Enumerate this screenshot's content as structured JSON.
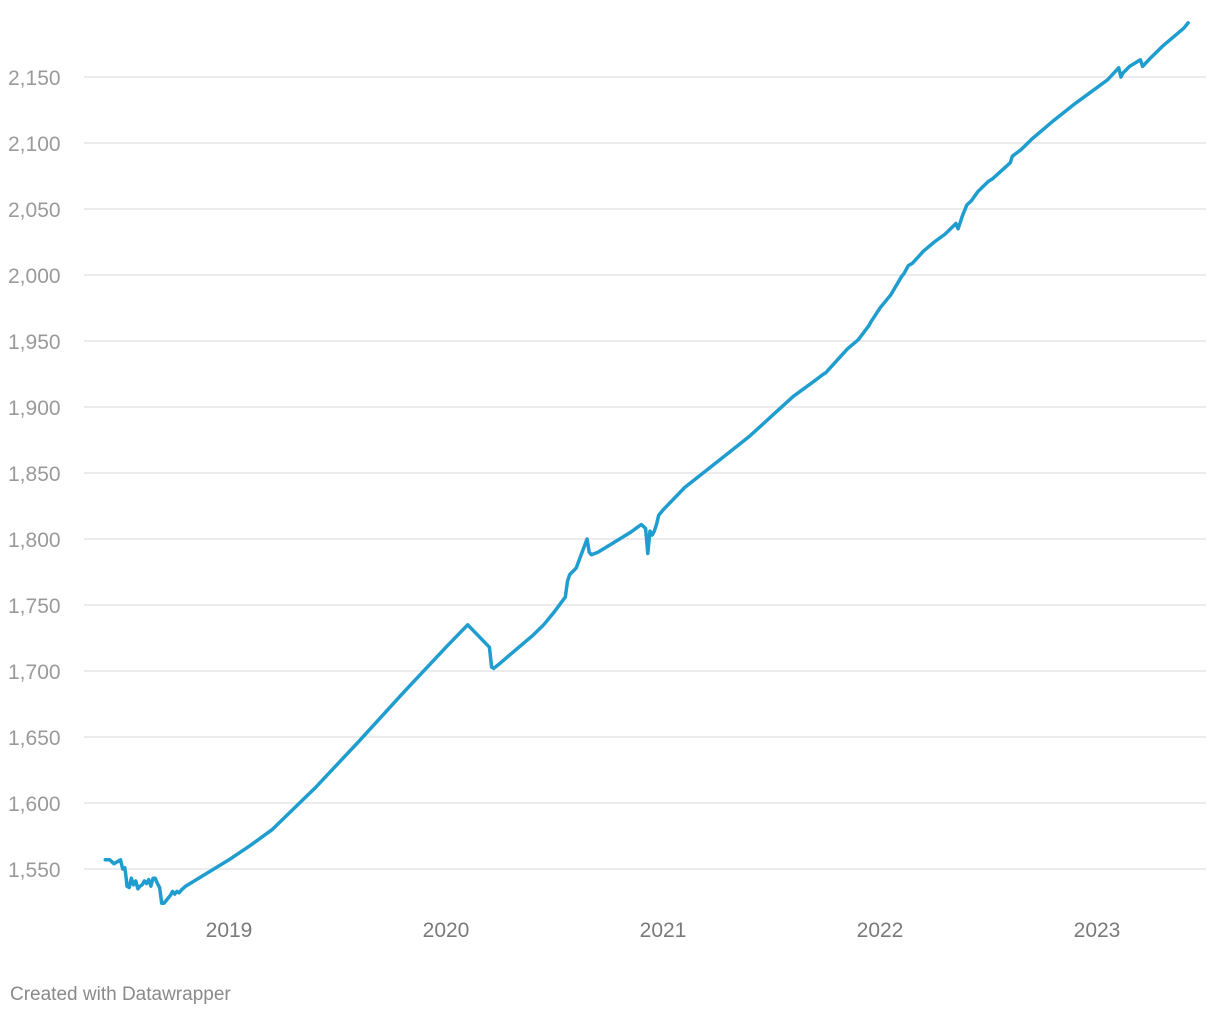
{
  "chart_data": {
    "type": "line",
    "title": "",
    "xlabel": "",
    "ylabel": "",
    "grid": true,
    "ylim": [
      1520,
      2190
    ],
    "yticks": [
      1550,
      1600,
      1650,
      1700,
      1750,
      1800,
      1850,
      1900,
      1950,
      2000,
      2050,
      2100,
      2150
    ],
    "ytick_labels": [
      "1,550",
      "1,600",
      "1,650",
      "1,700",
      "1,750",
      "1,800",
      "1,850",
      "1,900",
      "1,950",
      "2,000",
      "2,050",
      "2,100",
      "2,150"
    ],
    "xlim": [
      2018.4,
      2023.45
    ],
    "xticks": [
      2019,
      2020,
      2021,
      2022,
      2023
    ],
    "xtick_labels": [
      "2019",
      "2020",
      "2021",
      "2022",
      "2023"
    ],
    "color": "#1f9dcf",
    "series": [
      {
        "x": [
          2018.43,
          2018.45,
          2018.47,
          2018.5,
          2018.51,
          2018.52,
          2018.525,
          2018.53,
          2018.54,
          2018.55,
          2018.56,
          2018.57,
          2018.58,
          2018.59,
          2018.6,
          2018.61,
          2018.62,
          2018.63,
          2018.64,
          2018.65,
          2018.66,
          2018.67,
          2018.68,
          2018.69,
          2018.7,
          2018.71,
          2018.72,
          2018.73,
          2018.74,
          2018.75,
          2018.76,
          2018.77,
          2018.78,
          2018.8,
          2018.9,
          2019.0,
          2019.1,
          2019.2,
          2019.4,
          2019.6,
          2019.8,
          2020.0,
          2020.1,
          2020.2,
          2020.21,
          2020.22,
          2020.25,
          2020.3,
          2020.4,
          2020.45,
          2020.5,
          2020.55,
          2020.56,
          2020.57,
          2020.6,
          2020.65,
          2020.66,
          2020.67,
          2020.7,
          2020.72,
          2020.75,
          2020.8,
          2020.85,
          2020.9,
          2020.92,
          2020.93,
          2020.94,
          2020.95,
          2020.96,
          2020.97,
          2020.98,
          2021.0,
          2021.1,
          2021.2,
          2021.3,
          2021.4,
          2021.5,
          2021.6,
          2021.7,
          2021.74,
          2021.75,
          2021.8,
          2021.85,
          2021.9,
          2021.95,
          2021.96,
          2021.98,
          2022.0,
          2022.05,
          2022.1,
          2022.11,
          2022.13,
          2022.15,
          2022.2,
          2022.25,
          2022.3,
          2022.35,
          2022.36,
          2022.38,
          2022.4,
          2022.42,
          2022.45,
          2022.5,
          2022.52,
          2022.6,
          2022.61,
          2022.65,
          2022.7,
          2022.8,
          2022.9,
          2023.0,
          2023.05,
          2023.1,
          2023.11,
          2023.12,
          2023.15,
          2023.2,
          2023.21,
          2023.25,
          2023.3,
          2023.35,
          2023.4,
          2023.42
        ],
        "y": [
          1557,
          1557,
          1554,
          1557,
          1550,
          1551,
          1545,
          1537,
          1536,
          1543,
          1538,
          1541,
          1535,
          1537,
          1538,
          1541,
          1539,
          1542,
          1537,
          1543,
          1543,
          1539,
          1536,
          1524,
          1524,
          1526,
          1528,
          1530,
          1533,
          1531,
          1533,
          1532,
          1534,
          1537,
          1547,
          1557,
          1568,
          1580,
          1612,
          1647,
          1683,
          1718,
          1735,
          1718,
          1703,
          1702,
          1706,
          1713,
          1727,
          1735,
          1745,
          1756,
          1768,
          1773,
          1778,
          1800,
          1790,
          1788,
          1790,
          1792,
          1795,
          1800,
          1805,
          1811,
          1808,
          1789,
          1806,
          1803,
          1806,
          1811,
          1818,
          1822,
          1839,
          1852,
          1865,
          1878,
          1893,
          1908,
          1920,
          1925,
          1926,
          1935,
          1944,
          1951,
          1962,
          1965,
          1970,
          1975,
          1985,
          1999,
          2001,
          2007,
          2009,
          2018,
          2025,
          2031,
          2039,
          2035,
          2045,
          2053,
          2056,
          2063,
          2071,
          2073,
          2085,
          2090,
          2095,
          2103,
          2117,
          2130,
          2142,
          2148,
          2157,
          2150,
          2153,
          2158,
          2163,
          2158,
          2165,
          2173,
          2180,
          2187,
          2191
        ]
      }
    ]
  },
  "footer": {
    "credit": "Created with Datawrapper"
  }
}
